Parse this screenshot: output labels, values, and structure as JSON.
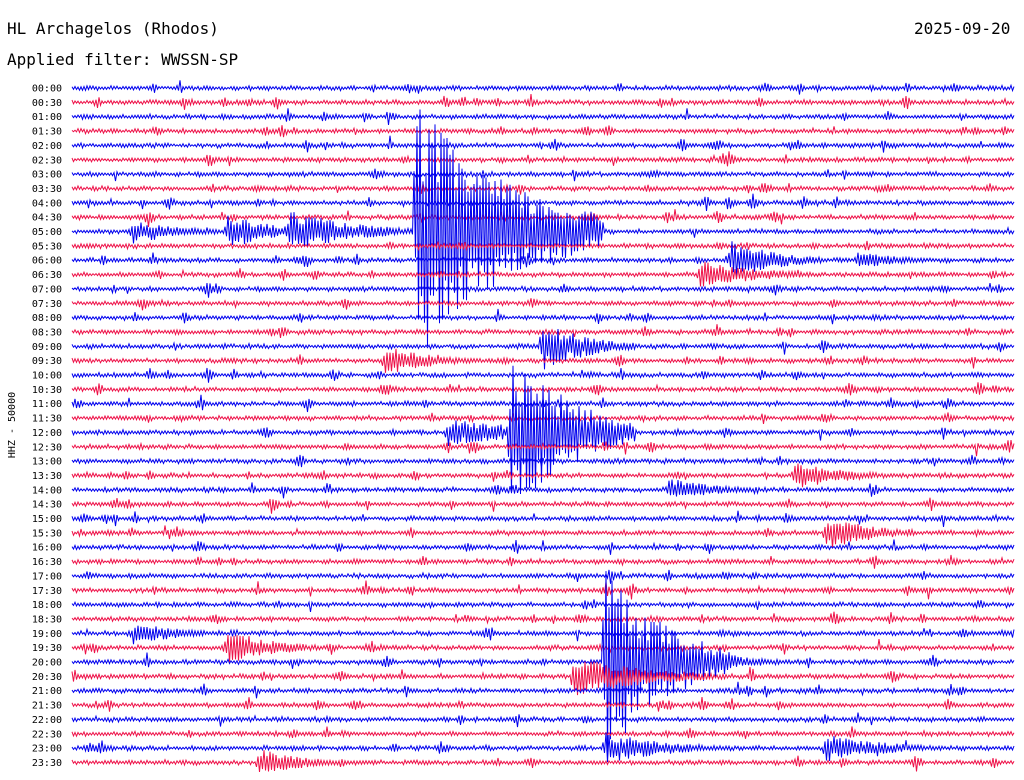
{
  "header": {
    "station": "HL Archagelos (Rhodos)",
    "date": "2025-09-20",
    "filter": "Applied filter: WWSSN-SP"
  },
  "chart_data": {
    "type": "line",
    "title": "HL Archagelos (Rhodos)",
    "ylabel": "HHZ - 50000",
    "colors": [
      "#0000ee",
      "#ee1148"
    ],
    "time_labels": [
      "00:00",
      "00:30",
      "01:00",
      "01:30",
      "02:00",
      "02:30",
      "03:00",
      "03:30",
      "04:00",
      "04:30",
      "05:00",
      "05:30",
      "06:00",
      "06:30",
      "07:00",
      "07:30",
      "08:00",
      "08:30",
      "09:00",
      "09:30",
      "10:00",
      "10:30",
      "11:00",
      "11:30",
      "12:00",
      "12:30",
      "13:00",
      "13:30",
      "14:00",
      "14:30",
      "15:00",
      "15:30",
      "16:00",
      "16:30",
      "17:00",
      "17:30",
      "18:00",
      "18:30",
      "19:00",
      "19:30",
      "20:00",
      "20:30",
      "21:00",
      "21:30",
      "22:00",
      "22:30",
      "23:00",
      "23:30"
    ],
    "events": [
      {
        "row": 10,
        "minute": 2,
        "amp": 13,
        "len": 3
      },
      {
        "row": 10,
        "minute": 7,
        "amp": 22,
        "len": 4
      },
      {
        "row": 10,
        "minute": 11,
        "amp": 130,
        "len": 6
      },
      {
        "row": 10,
        "minute": 5,
        "amp": 18,
        "len": 3
      },
      {
        "row": 12,
        "minute": 21,
        "amp": 20,
        "len": 3
      },
      {
        "row": 12,
        "minute": 25,
        "amp": 9,
        "len": 3
      },
      {
        "row": 13,
        "minute": 20,
        "amp": 14,
        "len": 4
      },
      {
        "row": 18,
        "minute": 15,
        "amp": 25,
        "len": 3
      },
      {
        "row": 19,
        "minute": 10,
        "amp": 15,
        "len": 3
      },
      {
        "row": 24,
        "minute": 14,
        "amp": 85,
        "len": 4
      },
      {
        "row": 24,
        "minute": 12,
        "amp": 14,
        "len": 6
      },
      {
        "row": 38,
        "minute": 2,
        "amp": 12,
        "len": 3
      },
      {
        "row": 39,
        "minute": 5,
        "amp": 18,
        "len": 3
      },
      {
        "row": 40,
        "minute": 17,
        "amp": 100,
        "len": 4
      },
      {
        "row": 40,
        "minute": 20,
        "amp": 14,
        "len": 3
      },
      {
        "row": 41,
        "minute": 16,
        "amp": 20,
        "len": 5
      },
      {
        "row": 46,
        "minute": 17,
        "amp": 16,
        "len": 4
      },
      {
        "row": 46,
        "minute": 24,
        "amp": 14,
        "len": 4
      },
      {
        "row": 47,
        "minute": 6,
        "amp": 14,
        "len": 3
      },
      {
        "row": 31,
        "minute": 24,
        "amp": 18,
        "len": 3
      },
      {
        "row": 27,
        "minute": 23,
        "amp": 16,
        "len": 3
      },
      {
        "row": 28,
        "minute": 19,
        "amp": 12,
        "len": 3
      }
    ]
  }
}
